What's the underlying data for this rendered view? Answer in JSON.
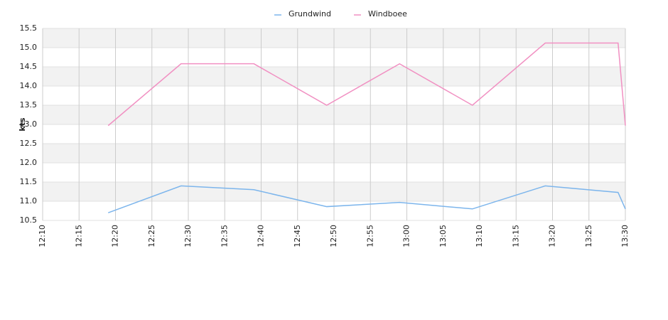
{
  "chart_data": {
    "type": "line",
    "x": [
      "12:19",
      "12:29",
      "12:39",
      "12:49",
      "12:59",
      "13:09",
      "13:19",
      "13:29",
      "13:30"
    ],
    "series": [
      {
        "name": "Grundwind",
        "color": "#7cb5ec",
        "values": [
          10.7,
          11.4,
          11.3,
          10.86,
          10.97,
          10.8,
          11.4,
          11.23,
          10.8
        ]
      },
      {
        "name": "Windboee",
        "color": "#f190c2",
        "values": [
          12.97,
          14.58,
          14.58,
          13.5,
          14.58,
          13.5,
          15.12,
          15.12,
          12.97
        ]
      }
    ],
    "ylabel": "kts",
    "xlim": [
      "12:10",
      "13:30"
    ],
    "xticks": [
      "12:10",
      "12:15",
      "12:20",
      "12:25",
      "12:30",
      "12:35",
      "12:40",
      "12:45",
      "12:50",
      "12:55",
      "13:00",
      "13:05",
      "13:10",
      "13:15",
      "13:20",
      "13:25",
      "13:30"
    ],
    "ylim": [
      10.5,
      15.5
    ],
    "yticks": [
      10.5,
      {
        "value": 11,
        "label": "11.0"
      },
      11.5,
      {
        "value": 12,
        "label": "12.0"
      },
      12.5,
      {
        "value": 13,
        "label": "13.0"
      },
      13.5,
      {
        "value": 14,
        "label": "14.0"
      },
      14.5,
      {
        "value": 15,
        "label": "15.0"
      },
      15.5
    ],
    "grid": true,
    "legend": "top"
  }
}
